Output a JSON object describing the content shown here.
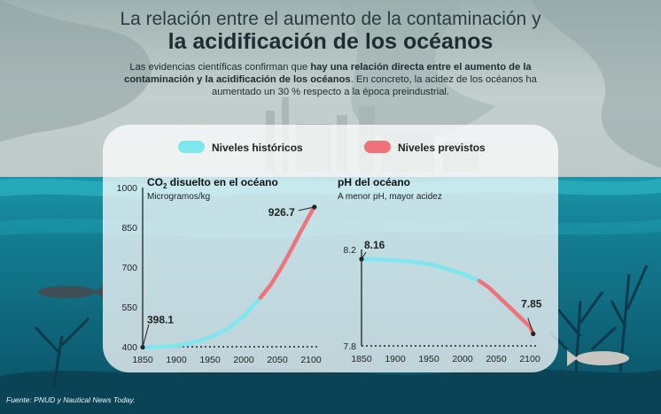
{
  "header": {
    "title_line1": "La relación entre el aumento de la contaminación y",
    "title_line2": "la acidificación de los océanos",
    "intro_part1": "Las evidencias científicas confirman que ",
    "intro_bold": "hay una relación directa entre el aumento de la contaminación y la acidificación de los océanos",
    "intro_part2": ". En concreto, la acidez de los océanos ha aumentado un 30 % respecto a la época preindustrial."
  },
  "legend": {
    "historical": "Niveles históricos",
    "projected": "Niveles previstos"
  },
  "colors": {
    "historical": "#7de6ee",
    "projected": "#f0727a",
    "sky": "#b3c2c1",
    "sea": "#137f95"
  },
  "source": "Fuente: PNUD y Nautical News Today.",
  "chart_data": [
    {
      "type": "line",
      "title_main": "CO",
      "title_sub": "2",
      "title_rest": " disuelto en el océano",
      "ylabel": "Microgramos/kg",
      "xlim": [
        1850,
        2100
      ],
      "ylim": [
        400,
        1000
      ],
      "x_ticks": [
        "1850",
        "1900",
        "1950",
        "2000",
        "2050",
        "2100"
      ],
      "y_ticks": [
        "400",
        "550",
        "700",
        "850",
        "1000"
      ],
      "series": [
        {
          "name": "Niveles históricos",
          "x": [
            1850,
            1875,
            1900,
            1925,
            1950,
            1975,
            2000,
            2025
          ],
          "y": [
            398.1,
            400,
            404,
            415,
            436,
            466,
            515,
            585
          ]
        },
        {
          "name": "Niveles previstos",
          "x": [
            2025,
            2040,
            2055,
            2070,
            2085,
            2100,
            2105
          ],
          "y": [
            585,
            633,
            694,
            763,
            836,
            905,
            926.7
          ]
        }
      ],
      "annotations": [
        {
          "x": 1850,
          "y": 398.1,
          "label": "398.1"
        },
        {
          "x": 2105,
          "y": 926.7,
          "label": "926.7"
        }
      ]
    },
    {
      "type": "line",
      "title": "pH del océano",
      "subtitle": "A menor pH, mayor acidez",
      "xlim": [
        1850,
        2100
      ],
      "ylim": [
        7.8,
        8.2
      ],
      "x_ticks": [
        "1850",
        "1900",
        "1950",
        "2000",
        "2050",
        "2100"
      ],
      "y_ticks": [
        "7.8",
        "8.2"
      ],
      "series": [
        {
          "name": "Niveles históricos",
          "x": [
            1850,
            1875,
            1900,
            1925,
            1950,
            1975,
            2000,
            2025
          ],
          "y": [
            8.16,
            8.159,
            8.155,
            8.15,
            8.14,
            8.12,
            8.1,
            8.07
          ]
        },
        {
          "name": "Niveles previstos",
          "x": [
            2025,
            2040,
            2055,
            2070,
            2085,
            2100,
            2105
          ],
          "y": [
            8.07,
            8.04,
            8.0,
            7.96,
            7.92,
            7.88,
            7.85
          ]
        }
      ],
      "annotations": [
        {
          "x": 1850,
          "y": 8.16,
          "label": "8.16"
        },
        {
          "x": 2105,
          "y": 7.85,
          "label": "7.85"
        }
      ]
    }
  ]
}
